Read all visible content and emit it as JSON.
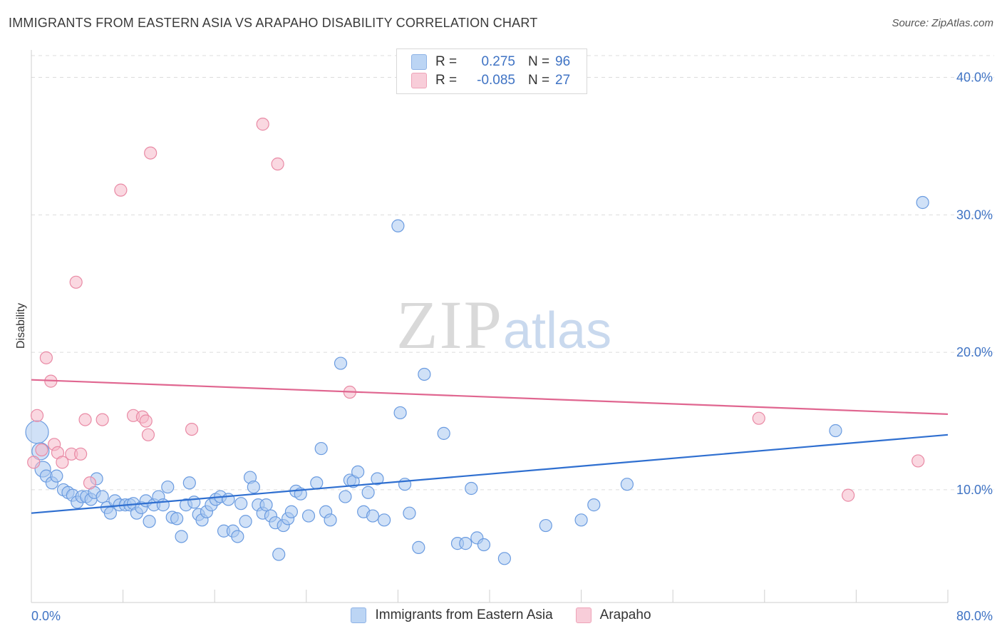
{
  "header": {
    "title": "IMMIGRANTS FROM EASTERN ASIA VS ARAPAHO DISABILITY CORRELATION CHART",
    "source": "Source: ZipAtlas.com"
  },
  "watermark": {
    "zip": "ZIP",
    "atlas": "atlas"
  },
  "legend": {
    "rows": [
      {
        "r_label": "R =",
        "r_value": "0.275",
        "n_label": "N =",
        "n_value": "96",
        "color": "#a9c8f0"
      },
      {
        "r_label": "R =",
        "r_value": "-0.085",
        "n_label": "N =",
        "n_value": "27",
        "color": "#f5b8c8"
      }
    ]
  },
  "bottom_legend": {
    "items": [
      {
        "label": "Immigrants from Eastern Asia",
        "color": "#a9c8f0"
      },
      {
        "label": "Arapaho",
        "color": "#f5b8c8"
      }
    ]
  },
  "chart_data": {
    "type": "scatter",
    "title": "IMMIGRANTS FROM EASTERN ASIA VS ARAPAHO DISABILITY CORRELATION CHART",
    "xlabel": "",
    "ylabel": "Disability",
    "xlim": [
      0,
      80
    ],
    "ylim": [
      1.8,
      42
    ],
    "y_ticks": [
      10,
      20,
      30,
      40
    ],
    "y_tick_labels": [
      "10.0%",
      "20.0%",
      "30.0%",
      "40.0%"
    ],
    "x_tick_labels": [
      "0.0%",
      "80.0%"
    ],
    "grid": true,
    "legend_position": "top-center",
    "series": [
      {
        "name": "Immigrants from Eastern Asia",
        "color": "#6a9be0",
        "fill": "#a9c8f0",
        "trend": {
          "x": [
            0,
            80
          ],
          "y": [
            8.3,
            14.0
          ],
          "color": "#2f6fd0"
        },
        "points": [
          {
            "x": 0.5,
            "y": 14.2,
            "s": 16
          },
          {
            "x": 0.8,
            "y": 12.8,
            "s": 12
          },
          {
            "x": 1.0,
            "y": 11.5,
            "s": 11
          },
          {
            "x": 1.3,
            "y": 11.0
          },
          {
            "x": 1.8,
            "y": 10.5
          },
          {
            "x": 2.2,
            "y": 11.0
          },
          {
            "x": 2.8,
            "y": 10.0
          },
          {
            "x": 3.2,
            "y": 9.8
          },
          {
            "x": 3.6,
            "y": 9.6
          },
          {
            "x": 4.0,
            "y": 9.1
          },
          {
            "x": 4.4,
            "y": 9.5
          },
          {
            "x": 4.8,
            "y": 9.5
          },
          {
            "x": 5.2,
            "y": 9.3
          },
          {
            "x": 5.5,
            "y": 9.8
          },
          {
            "x": 5.7,
            "y": 10.8
          },
          {
            "x": 6.2,
            "y": 9.5
          },
          {
            "x": 6.6,
            "y": 8.7
          },
          {
            "x": 6.9,
            "y": 8.3
          },
          {
            "x": 7.3,
            "y": 9.2
          },
          {
            "x": 7.7,
            "y": 8.9
          },
          {
            "x": 8.2,
            "y": 8.9
          },
          {
            "x": 8.6,
            "y": 8.9
          },
          {
            "x": 8.9,
            "y": 9.0
          },
          {
            "x": 9.2,
            "y": 8.3
          },
          {
            "x": 9.6,
            "y": 8.7
          },
          {
            "x": 10.0,
            "y": 9.2
          },
          {
            "x": 10.3,
            "y": 7.7
          },
          {
            "x": 10.7,
            "y": 8.9
          },
          {
            "x": 11.1,
            "y": 9.5
          },
          {
            "x": 11.5,
            "y": 8.9
          },
          {
            "x": 11.9,
            "y": 10.2
          },
          {
            "x": 12.3,
            "y": 8.0
          },
          {
            "x": 12.7,
            "y": 7.9
          },
          {
            "x": 13.1,
            "y": 6.6
          },
          {
            "x": 13.5,
            "y": 8.9
          },
          {
            "x": 13.8,
            "y": 10.5
          },
          {
            "x": 14.2,
            "y": 9.1
          },
          {
            "x": 14.6,
            "y": 8.2
          },
          {
            "x": 14.9,
            "y": 7.8
          },
          {
            "x": 15.3,
            "y": 8.4
          },
          {
            "x": 15.7,
            "y": 8.9
          },
          {
            "x": 16.1,
            "y": 9.3
          },
          {
            "x": 16.5,
            "y": 9.5
          },
          {
            "x": 16.8,
            "y": 7.0
          },
          {
            "x": 17.2,
            "y": 9.3
          },
          {
            "x": 17.6,
            "y": 7.0
          },
          {
            "x": 18.0,
            "y": 6.6
          },
          {
            "x": 18.3,
            "y": 9.0
          },
          {
            "x": 18.7,
            "y": 7.7
          },
          {
            "x": 19.1,
            "y": 10.9
          },
          {
            "x": 19.4,
            "y": 10.2
          },
          {
            "x": 19.8,
            "y": 8.9
          },
          {
            "x": 20.2,
            "y": 8.3
          },
          {
            "x": 20.5,
            "y": 8.9
          },
          {
            "x": 20.9,
            "y": 8.1
          },
          {
            "x": 21.3,
            "y": 7.6
          },
          {
            "x": 21.6,
            "y": 5.3
          },
          {
            "x": 22.0,
            "y": 7.4
          },
          {
            "x": 22.4,
            "y": 7.9
          },
          {
            "x": 22.7,
            "y": 8.4
          },
          {
            "x": 23.1,
            "y": 9.9
          },
          {
            "x": 23.5,
            "y": 9.7
          },
          {
            "x": 24.2,
            "y": 8.1
          },
          {
            "x": 24.9,
            "y": 10.5
          },
          {
            "x": 25.3,
            "y": 13.0
          },
          {
            "x": 25.7,
            "y": 8.4
          },
          {
            "x": 26.1,
            "y": 7.8
          },
          {
            "x": 27.0,
            "y": 19.2
          },
          {
            "x": 27.4,
            "y": 9.5
          },
          {
            "x": 27.8,
            "y": 10.7
          },
          {
            "x": 28.1,
            "y": 10.6
          },
          {
            "x": 28.5,
            "y": 11.3
          },
          {
            "x": 29.0,
            "y": 8.4
          },
          {
            "x": 29.4,
            "y": 9.8
          },
          {
            "x": 29.8,
            "y": 8.1
          },
          {
            "x": 30.2,
            "y": 10.8
          },
          {
            "x": 30.8,
            "y": 7.8
          },
          {
            "x": 32.0,
            "y": 29.2
          },
          {
            "x": 32.2,
            "y": 15.6
          },
          {
            "x": 32.6,
            "y": 10.4
          },
          {
            "x": 33.0,
            "y": 8.3
          },
          {
            "x": 33.8,
            "y": 5.8
          },
          {
            "x": 34.3,
            "y": 18.4
          },
          {
            "x": 36.0,
            "y": 14.1
          },
          {
            "x": 37.2,
            "y": 6.1
          },
          {
            "x": 37.9,
            "y": 6.1
          },
          {
            "x": 38.4,
            "y": 10.1
          },
          {
            "x": 38.9,
            "y": 6.5
          },
          {
            "x": 39.5,
            "y": 6.0
          },
          {
            "x": 41.3,
            "y": 5.0
          },
          {
            "x": 44.9,
            "y": 7.4
          },
          {
            "x": 48.0,
            "y": 7.8
          },
          {
            "x": 49.1,
            "y": 8.9
          },
          {
            "x": 52.0,
            "y": 10.4
          },
          {
            "x": 70.2,
            "y": 14.3
          },
          {
            "x": 77.8,
            "y": 30.9
          }
        ]
      },
      {
        "name": "Arapaho",
        "color": "#e98aa5",
        "fill": "#f5b8c8",
        "trend": {
          "x": [
            0,
            80
          ],
          "y": [
            18.0,
            15.5
          ],
          "color": "#e06690"
        },
        "points": [
          {
            "x": 0.2,
            "y": 12.0
          },
          {
            "x": 0.5,
            "y": 15.4
          },
          {
            "x": 0.9,
            "y": 12.9
          },
          {
            "x": 1.3,
            "y": 19.6
          },
          {
            "x": 1.7,
            "y": 17.9
          },
          {
            "x": 2.0,
            "y": 13.3
          },
          {
            "x": 2.3,
            "y": 12.7
          },
          {
            "x": 2.7,
            "y": 12.0
          },
          {
            "x": 3.5,
            "y": 12.6
          },
          {
            "x": 3.9,
            "y": 25.1
          },
          {
            "x": 4.3,
            "y": 12.6
          },
          {
            "x": 4.7,
            "y": 15.1
          },
          {
            "x": 5.1,
            "y": 10.5
          },
          {
            "x": 6.2,
            "y": 15.1
          },
          {
            "x": 7.8,
            "y": 31.8
          },
          {
            "x": 8.9,
            "y": 15.4
          },
          {
            "x": 9.7,
            "y": 15.3
          },
          {
            "x": 10.0,
            "y": 15.0
          },
          {
            "x": 10.2,
            "y": 14.0
          },
          {
            "x": 10.4,
            "y": 34.5
          },
          {
            "x": 14.0,
            "y": 14.4
          },
          {
            "x": 20.2,
            "y": 36.6
          },
          {
            "x": 21.5,
            "y": 33.7
          },
          {
            "x": 27.8,
            "y": 17.1
          },
          {
            "x": 63.5,
            "y": 15.2
          },
          {
            "x": 71.3,
            "y": 9.6
          },
          {
            "x": 77.4,
            "y": 12.1
          }
        ]
      }
    ]
  }
}
